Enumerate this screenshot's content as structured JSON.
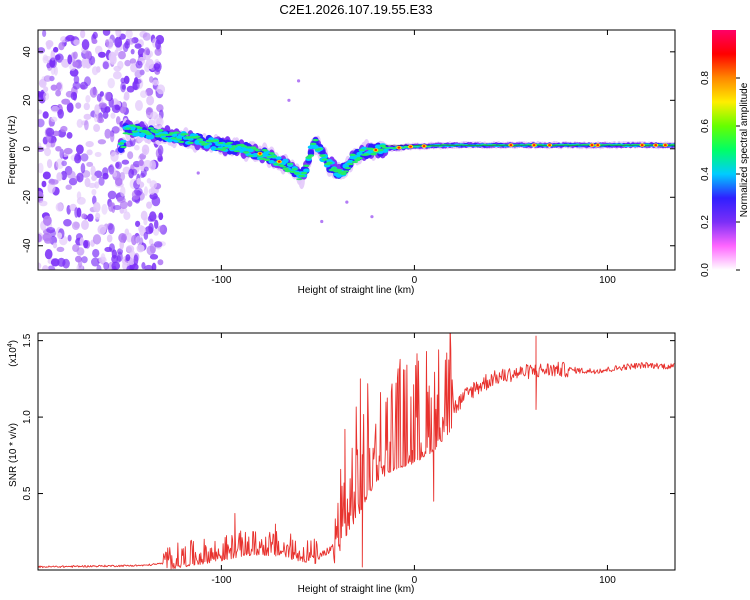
{
  "title": "C2E1.2026.107.19.55.E33",
  "colors": {
    "signal": "#e8322e",
    "axis": "#000000",
    "low": "#7b2ff7"
  },
  "chart_data": [
    {
      "type": "heatmap",
      "xlabel": "Height of straight line (km)",
      "ylabel": "Frequency (Hz)",
      "xlim": [
        -195,
        135
      ],
      "ylim": [
        -50,
        49
      ],
      "xticks": [
        {
          "value": -100,
          "label": "-100"
        },
        {
          "value": 0,
          "label": "0"
        },
        {
          "value": 100,
          "label": "100"
        }
      ],
      "yticks": [
        {
          "value": -40,
          "label": "-40"
        },
        {
          "value": -20,
          "label": "-20"
        },
        {
          "value": 0,
          "label": "0"
        },
        {
          "value": 20,
          "label": "20"
        },
        {
          "value": 40,
          "label": "40"
        }
      ],
      "colorbar": {
        "label": "Normalized spectral amplitude",
        "range": [
          0,
          1
        ],
        "ticks": [
          {
            "value": 0.0,
            "label": "0.0"
          },
          {
            "value": 0.2,
            "label": "0.2"
          },
          {
            "value": 0.4,
            "label": "0.4"
          },
          {
            "value": 0.6,
            "label": "0.6"
          },
          {
            "value": 0.8,
            "label": "0.8"
          }
        ],
        "colormap": [
          "#ffffff",
          "#ff66ff",
          "#7b2ff7",
          "#2f1fff",
          "#00ccff",
          "#00ff66",
          "#66ff00",
          "#ffee00",
          "#ff8800",
          "#ff0000",
          "#ff0066"
        ]
      },
      "ridge": [
        {
          "x": -150,
          "f": 8
        },
        {
          "x": -130,
          "f": 6
        },
        {
          "x": -110,
          "f": 3
        },
        {
          "x": -90,
          "f": 0
        },
        {
          "x": -75,
          "f": -3
        },
        {
          "x": -62,
          "f": -9
        },
        {
          "x": -58,
          "f": -12
        },
        {
          "x": -52,
          "f": 3
        },
        {
          "x": -45,
          "f": -6
        },
        {
          "x": -38,
          "f": -10
        },
        {
          "x": -32,
          "f": -4
        },
        {
          "x": -25,
          "f": -1
        },
        {
          "x": -15,
          "f": 0
        },
        {
          "x": 0,
          "f": 1
        },
        {
          "x": 20,
          "f": 1.5
        },
        {
          "x": 60,
          "f": 1.5
        },
        {
          "x": 100,
          "f": 1.5
        },
        {
          "x": 135,
          "f": 1.5
        }
      ]
    },
    {
      "type": "line",
      "xlabel": "Height of straight line (km)",
      "ylabel": "SNR (10 * v/v)",
      "scale_label": "(x10",
      "scale_exponent": "4",
      "xlim": [
        -195,
        135
      ],
      "ylim": [
        0,
        1.55
      ],
      "xticks": [
        {
          "value": -100,
          "label": "-100"
        },
        {
          "value": 0,
          "label": "0"
        },
        {
          "value": 100,
          "label": "100"
        }
      ],
      "yticks": [
        {
          "value": 0.5,
          "label": "0.5"
        },
        {
          "value": 1.0,
          "label": "1.0"
        },
        {
          "value": 1.5,
          "label": "1.5"
        }
      ],
      "series": [
        {
          "name": "SNR",
          "baseline": [
            {
              "x": -195,
              "y": 0.02
            },
            {
              "x": -140,
              "y": 0.03
            },
            {
              "x": -125,
              "y": 0.05
            },
            {
              "x": -110,
              "y": 0.08
            },
            {
              "x": -100,
              "y": 0.1
            },
            {
              "x": -90,
              "y": 0.13
            },
            {
              "x": -80,
              "y": 0.14
            },
            {
              "x": -70,
              "y": 0.13
            },
            {
              "x": -60,
              "y": 0.1
            },
            {
              "x": -50,
              "y": 0.08
            },
            {
              "x": -42,
              "y": 0.15
            },
            {
              "x": -35,
              "y": 0.35
            },
            {
              "x": -28,
              "y": 0.5
            },
            {
              "x": -20,
              "y": 0.7
            },
            {
              "x": -10,
              "y": 0.78
            },
            {
              "x": 0,
              "y": 0.82
            },
            {
              "x": 10,
              "y": 0.9
            },
            {
              "x": 20,
              "y": 1.05
            },
            {
              "x": 30,
              "y": 1.18
            },
            {
              "x": 40,
              "y": 1.25
            },
            {
              "x": 50,
              "y": 1.28
            },
            {
              "x": 60,
              "y": 1.3
            },
            {
              "x": 70,
              "y": 1.31
            },
            {
              "x": 80,
              "y": 1.31
            },
            {
              "x": 90,
              "y": 1.3
            },
            {
              "x": 100,
              "y": 1.31
            },
            {
              "x": 110,
              "y": 1.33
            },
            {
              "x": 120,
              "y": 1.34
            },
            {
              "x": 135,
              "y": 1.33
            }
          ],
          "peaks": [
            {
              "x": -93,
              "y": 0.37
            },
            {
              "x": -72,
              "y": 0.3
            },
            {
              "x": -36,
              "y": 0.92
            },
            {
              "x": -28,
              "y": 1.25
            },
            {
              "x": -27,
              "y": 0.02
            },
            {
              "x": 10,
              "y": 0.45
            },
            {
              "x": 63,
              "y": 1.53
            },
            {
              "x": 63,
              "y": 1.05
            }
          ]
        }
      ]
    }
  ]
}
